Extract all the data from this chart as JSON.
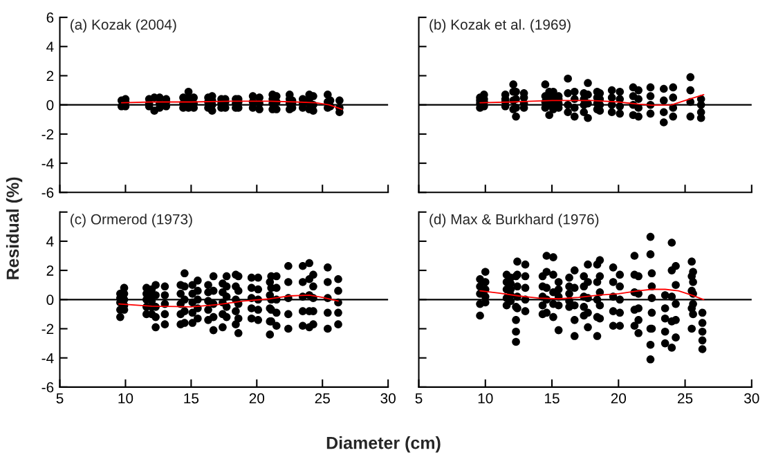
{
  "chart_data": [
    {
      "type": "scatter",
      "title": "(a) Kozak (2004)",
      "ylabel": "Residual (%)",
      "xlim": [
        5,
        30
      ],
      "xticks": [
        5,
        10,
        15,
        20,
        25,
        30
      ],
      "ylim": [
        -6,
        6
      ],
      "yticks": [
        -6,
        -4,
        -2,
        0,
        2,
        4,
        6
      ],
      "tick_labels": "y",
      "ref_lines": [
        {
          "axis": "y",
          "value": 0,
          "color": "#000000"
        }
      ],
      "series": [
        {
          "color": "#000000",
          "marker": "circle",
          "x": [
            9.7,
            9.7,
            10,
            10,
            10,
            11.8,
            11.8,
            11.8,
            12.2,
            12.2,
            12.6,
            12.6,
            12.6,
            13.1,
            13.1,
            13.1,
            14.4,
            14.4,
            14.4,
            14.8,
            14.8,
            14.8,
            14.8,
            15.2,
            15.2,
            15.2,
            16.3,
            16.3,
            16.3,
            16.6,
            16.6,
            16.6,
            16.6,
            17.3,
            17.3,
            17.3,
            17.6,
            17.6,
            17.6,
            18.4,
            18.4,
            18.4,
            18.6,
            18.6,
            18.6,
            19.7,
            19.7,
            19.7,
            20.2,
            20.2,
            20.2,
            21.2,
            21.2,
            21.2,
            21.2,
            21.5,
            21.5,
            21.5,
            22.5,
            22.5,
            22.5,
            22.5,
            22.7,
            22.7,
            22.7,
            23.5,
            23.5,
            23.5,
            24,
            24,
            24,
            24,
            24.3,
            24.3,
            24.3,
            25.4,
            25.4,
            25.4,
            25.6,
            25.6,
            26.3,
            26.3,
            26.3
          ],
          "values": [
            -0.1,
            0.3,
            -0.1,
            0.2,
            0.4,
            -0.1,
            0.1,
            0.4,
            -0.4,
            0.5,
            -0.2,
            0.1,
            0.5,
            -0.1,
            0.2,
            0.4,
            -0.2,
            0.1,
            0.5,
            -0.2,
            0.2,
            0.5,
            0.9,
            -0.2,
            0.1,
            0.5,
            -0.2,
            0.2,
            0.5,
            -0.4,
            0,
            0.3,
            0.6,
            -0.2,
            0.1,
            0.4,
            -0.2,
            0.2,
            0.4,
            -0.2,
            0.1,
            0.4,
            -0.2,
            0.2,
            0.4,
            -0.2,
            0.2,
            0.6,
            -0.3,
            0.1,
            0.5,
            -0.3,
            0.1,
            0.4,
            0.7,
            -0.3,
            0.2,
            0.6,
            -0.3,
            0.1,
            0.4,
            0.7,
            -0.2,
            0.1,
            0.3,
            -0.2,
            0.1,
            0.4,
            -0.3,
            0.1,
            0.4,
            0.7,
            -0.4,
            0,
            0.6,
            -0.2,
            0.2,
            0.7,
            -0.1,
            0.3,
            -0.5,
            -0.2,
            0.3
          ]
        },
        {
          "type": "line",
          "color": "#ff0000",
          "x": [
            9.7,
            12,
            15,
            18,
            21,
            23,
            24.5,
            25.5,
            26.5
          ],
          "values": [
            0.15,
            0.2,
            0.2,
            0.25,
            0.25,
            0.2,
            0.15,
            0.0,
            -0.3
          ]
        }
      ]
    },
    {
      "type": "scatter",
      "title": "(b) Kozak et al. (1969)",
      "xlim": [
        5,
        30
      ],
      "xticks": [
        5,
        10,
        15,
        20,
        25,
        30
      ],
      "ylim": [
        -6,
        6
      ],
      "yticks": [
        -6,
        -4,
        -2,
        0,
        2,
        4,
        6
      ],
      "tick_labels": false,
      "ref_lines": [
        {
          "axis": "y",
          "value": 0,
          "color": "#000000"
        }
      ],
      "series": [
        {
          "color": "#000000",
          "marker": "circle",
          "x": [
            9.6,
            9.6,
            9.6,
            9.6,
            9.9,
            9.9,
            9.9,
            9.9,
            11.5,
            11.5,
            11.5,
            11.5,
            12.1,
            12.1,
            12.1,
            12.1,
            12.3,
            12.3,
            12.3,
            12.3,
            12.9,
            12.9,
            12.9,
            12.9,
            14.5,
            14.5,
            14.5,
            14.5,
            14.8,
            14.8,
            14.8,
            14.8,
            15.1,
            15.1,
            15.1,
            15.1,
            15.5,
            15.5,
            15.5,
            15.5,
            16.2,
            16.2,
            16.2,
            16.2,
            16.7,
            16.7,
            16.7,
            16.7,
            17.4,
            17.4,
            17.4,
            17.4,
            17.7,
            17.7,
            17.7,
            17.7,
            18.4,
            18.4,
            18.4,
            18.4,
            18.6,
            18.6,
            18.6,
            18.6,
            19.5,
            19.5,
            19.5,
            19.5,
            20.1,
            20.1,
            20.1,
            20.1,
            21.1,
            21.1,
            21.1,
            21.1,
            21.5,
            21.5,
            21.5,
            21.5,
            22.4,
            22.4,
            22.4,
            22.4,
            23.4,
            23.4,
            23.4,
            23.4,
            24.1,
            24.1,
            24.1,
            24.1,
            25.4,
            25.4,
            25.4,
            25.4,
            26.2,
            26.2,
            26.2,
            26.2
          ],
          "values": [
            -0.2,
            0.1,
            0.3,
            0.5,
            -0.1,
            0.2,
            0.4,
            0.7,
            -0.1,
            0.2,
            0.4,
            0.7,
            -0.3,
            0.3,
            0.9,
            1.4,
            -0.8,
            -0.2,
            0.4,
            0.9,
            -0.2,
            0.1,
            0.5,
            0.8,
            -0.2,
            0.2,
            0.6,
            1.4,
            -0.7,
            0.0,
            0.5,
            0.9,
            -0.3,
            0.1,
            0.5,
            0.9,
            -0.2,
            0.1,
            0.4,
            0.6,
            -0.5,
            0.0,
            0.8,
            1.8,
            -0.8,
            -0.2,
            0.4,
            0.9,
            -0.5,
            0.0,
            0.4,
            0.8,
            -0.9,
            0.1,
            0.7,
            1.5,
            -0.3,
            0.1,
            0.5,
            0.9,
            -0.4,
            0.0,
            0.4,
            0.8,
            -0.5,
            0.0,
            0.5,
            1.0,
            -0.6,
            -0.1,
            0.4,
            0.9,
            -0.7,
            0.0,
            0.6,
            1.2,
            -0.8,
            -0.2,
            0.4,
            1.0,
            -0.6,
            0.0,
            0.6,
            1.2,
            -1.2,
            -0.5,
            0.3,
            1.1,
            -0.8,
            -0.2,
            0.5,
            1.2,
            -0.8,
            0.2,
            1.0,
            1.9,
            -0.9,
            -0.5,
            0.0,
            0.4
          ]
        },
        {
          "type": "line",
          "color": "#ff0000",
          "x": [
            9.6,
            12,
            15,
            18,
            20,
            21.5,
            22.5,
            24,
            25,
            26.4
          ],
          "values": [
            0.15,
            0.2,
            0.3,
            0.3,
            0.2,
            0.05,
            -0.02,
            0.0,
            0.3,
            0.7
          ]
        }
      ]
    },
    {
      "type": "scatter",
      "title": "(c) Ormerod (1973)",
      "xlabel": "Diameter (cm)",
      "xlim": [
        5,
        30
      ],
      "xticks": [
        5,
        10,
        15,
        20,
        25,
        30
      ],
      "ylim": [
        -6,
        6
      ],
      "yticks": [
        -6,
        -4,
        -2,
        0,
        2,
        4,
        {
          "value": 6,
          "label": null
        }
      ],
      "ref_lines": [
        {
          "axis": "y",
          "value": 0,
          "color": "#000000"
        }
      ],
      "series": [
        {
          "color": "#000000",
          "marker": "circle",
          "x": [
            9.6,
            9.6,
            9.6,
            9.6,
            9.6,
            9.9,
            9.9,
            9.9,
            9.9,
            9.9,
            11.6,
            11.6,
            11.6,
            11.6,
            11.6,
            12,
            12,
            12,
            12,
            12,
            12.3,
            12.3,
            12.3,
            12.3,
            12.3,
            13,
            13,
            13,
            13,
            13,
            14.2,
            14.2,
            14.2,
            14.2,
            14.2,
            14.5,
            14.5,
            14.5,
            14.5,
            14.5,
            15.1,
            15.1,
            15.1,
            15.1,
            15.1,
            15.5,
            15.5,
            15.5,
            15.5,
            15.5,
            16.3,
            16.3,
            16.3,
            16.3,
            16.3,
            16.7,
            16.7,
            16.7,
            16.7,
            16.7,
            17.4,
            17.4,
            17.4,
            17.4,
            17.4,
            17.7,
            17.7,
            17.7,
            17.7,
            17.7,
            18.4,
            18.4,
            18.4,
            18.4,
            18.4,
            18.6,
            18.6,
            18.6,
            18.6,
            18.6,
            19.6,
            19.6,
            19.6,
            19.6,
            19.6,
            20.1,
            20.1,
            20.1,
            20.1,
            20.1,
            21.1,
            21.1,
            21.1,
            21.1,
            21.1,
            21,
            21,
            21,
            21,
            21,
            21.5,
            21.5,
            21.5,
            21.5,
            21.5,
            22.4,
            22.4,
            22.4,
            22.4,
            22.4,
            23.5,
            23.5,
            23.5,
            23.5,
            23.5,
            24,
            24,
            24,
            24,
            24,
            24.3,
            24.3,
            24.3,
            24.3,
            24.3,
            25.4,
            25.4,
            25.4,
            25.4,
            25.4,
            26.2,
            26.2,
            26.2,
            26.2,
            26.2
          ],
          "values": [
            -1.2,
            -0.7,
            -0.2,
            0.1,
            0.4,
            -0.7,
            -0.4,
            0.0,
            0.4,
            0.8,
            -1.0,
            -0.5,
            0.0,
            0.4,
            0.8,
            -1.0,
            -0.5,
            -0.1,
            0.3,
            0.7,
            -1.9,
            -1.2,
            -0.5,
            0.3,
            1.0,
            -1.7,
            -1.0,
            -0.3,
            0.3,
            0.9,
            -1.7,
            -1.0,
            -0.3,
            0.4,
            1.0,
            -1.6,
            -0.8,
            0.0,
            0.9,
            1.8,
            -1.6,
            -0.9,
            -0.2,
            0.4,
            1.0,
            -1.3,
            -0.6,
            0.0,
            0.6,
            1.3,
            -1.4,
            -0.7,
            -0.1,
            0.5,
            1.0,
            -2.1,
            -1.2,
            -0.3,
            0.6,
            1.6,
            -1.9,
            -1.0,
            -0.2,
            0.5,
            1.1,
            -1.2,
            -0.5,
            0.2,
            0.9,
            1.6,
            -1.7,
            -0.8,
            0.0,
            0.9,
            1.7,
            -2.3,
            -1.3,
            -0.3,
            0.6,
            1.6,
            -1.3,
            -0.6,
            0.1,
            0.8,
            1.5,
            -1.4,
            -0.7,
            0.0,
            0.7,
            1.5,
            -1.5,
            -0.7,
            0.0,
            0.8,
            1.6,
            -2.4,
            -1.5,
            -0.6,
            0.3,
            1.2,
            -1.8,
            -0.9,
            0.0,
            0.8,
            1.6,
            -2.0,
            -1.0,
            0.1,
            1.2,
            2.3,
            -1.8,
            -0.8,
            0.2,
            1.2,
            2.3,
            -1.9,
            -0.8,
            0.3,
            1.4,
            2.5,
            -1.7,
            -0.8,
            0.1,
            0.9,
            1.7,
            -2.0,
            -0.9,
            0.1,
            1.2,
            2.2,
            -1.7,
            -0.9,
            -0.2,
            0.6,
            1.4
          ]
        },
        {
          "type": "line",
          "color": "#ff0000",
          "x": [
            9.5,
            12,
            15,
            17,
            19,
            21,
            22.5,
            24,
            25,
            26.2
          ],
          "values": [
            -0.3,
            -0.45,
            -0.5,
            -0.35,
            -0.1,
            0.05,
            0.25,
            0.3,
            0.15,
            -0.1
          ]
        }
      ]
    },
    {
      "type": "scatter",
      "title": "(d) Max & Burkhard (1976)",
      "xlim": [
        5,
        30
      ],
      "xticks": [
        5,
        10,
        15,
        20,
        25,
        30
      ],
      "ylim": [
        -6,
        6
      ],
      "yticks": [
        -6,
        -4,
        -2,
        0,
        2,
        4,
        6
      ],
      "tick_labels": "x",
      "ref_lines": [
        {
          "axis": "y",
          "value": 0,
          "color": "#000000"
        }
      ],
      "series": [
        {
          "color": "#000000",
          "marker": "circle",
          "x": [
            9.6,
            9.6,
            9.6,
            9.6,
            9.6,
            10,
            10,
            10,
            10,
            10,
            11.6,
            11.6,
            11.6,
            11.6,
            11.6,
            11.9,
            11.9,
            11.9,
            11.9,
            11.9,
            12.3,
            12.3,
            12.3,
            12.3,
            12.3,
            12.4,
            12.4,
            12.4,
            12.4,
            12.4,
            13,
            13,
            13,
            13,
            13,
            14.3,
            14.3,
            14.3,
            14.3,
            14.3,
            14.6,
            14.6,
            14.6,
            14.6,
            14.6,
            15.1,
            15.1,
            15.1,
            15.1,
            15.1,
            15.5,
            15.5,
            15.5,
            15.5,
            15.5,
            16.3,
            16.3,
            16.3,
            16.3,
            16.3,
            16.7,
            16.7,
            16.7,
            16.7,
            16.7,
            17.4,
            17.4,
            17.4,
            17.4,
            17.4,
            17.7,
            17.7,
            17.7,
            17.7,
            17.7,
            18.4,
            18.4,
            18.4,
            18.4,
            18.4,
            18.6,
            18.6,
            18.6,
            18.6,
            18.6,
            19.6,
            19.6,
            19.6,
            19.6,
            19.6,
            20.1,
            20.1,
            20.1,
            20.1,
            20.1,
            21.2,
            21.2,
            21.2,
            21.2,
            21.2,
            21.5,
            21.5,
            21.5,
            21.5,
            21.5,
            22.4,
            22.4,
            22.4,
            22.4,
            22.4,
            22.5,
            22.5,
            22.5,
            22.5,
            22.5,
            23.5,
            23.5,
            23.5,
            23.5,
            23.5,
            24,
            24,
            24,
            24,
            24,
            24.3,
            24.3,
            24.3,
            24.3,
            24.3,
            25.5,
            25.5,
            25.5,
            25.5,
            25.5,
            25.6,
            25.6,
            25.6,
            25.6,
            25.6,
            26.3,
            26.3,
            26.3,
            26.3,
            26.3
          ],
          "values": [
            -1.1,
            -0.3,
            0.4,
            0.9,
            1.4,
            -0.2,
            0.2,
            0.7,
            1.2,
            1.9,
            -0.4,
            0.1,
            0.7,
            1.2,
            1.7,
            -0.1,
            0.3,
            0.7,
            1.1,
            1.5,
            -2.9,
            -2.2,
            -1.4,
            -0.5,
            1.6,
            -0.6,
            0.2,
            0.9,
            1.7,
            2.6,
            -0.8,
            0.0,
            0.8,
            1.6,
            2.4,
            -1.0,
            -0.4,
            0.2,
            0.9,
            1.6,
            -0.9,
            0.0,
            0.8,
            1.9,
            3.0,
            -1.2,
            -0.3,
            0.5,
            1.7,
            2.9,
            -2.1,
            -0.4,
            0.2,
            0.7,
            1.2,
            -0.5,
            -0.1,
            0.4,
            0.9,
            1.5,
            -2.5,
            -1.4,
            -0.4,
            0.8,
            2.0,
            -1.1,
            -0.5,
            0.2,
            0.9,
            1.6,
            -1.9,
            -0.9,
            0.1,
            1.2,
            2.4,
            -2.5,
            -1.2,
            0.0,
            1.2,
            2.4,
            -1.3,
            -0.4,
            0.5,
            1.6,
            2.7,
            -1.8,
            -0.8,
            0.2,
            1.2,
            2.2,
            -1.8,
            -0.9,
            0.0,
            0.9,
            1.7,
            -1.8,
            -0.7,
            0.5,
            1.7,
            3.0,
            -2.3,
            -1.4,
            -0.6,
            0.4,
            1.6,
            -4.1,
            -3.1,
            -2.0,
            3.1,
            4.3,
            -2.0,
            -0.9,
            0.1,
            0.9,
            1.8,
            -3.0,
            -2.2,
            -1.3,
            -0.6,
            0.3,
            -3.3,
            -1.5,
            0.2,
            2.0,
            3.9,
            -2.6,
            -1.4,
            -0.3,
            1.0,
            2.3,
            -2.0,
            -0.6,
            0.6,
            1.6,
            2.6,
            -1.0,
            -0.3,
            0.4,
            1.2,
            1.9,
            -3.4,
            -2.8,
            -2.2,
            -1.6,
            -0.9
          ]
        },
        {
          "type": "line",
          "color": "#ff0000",
          "x": [
            9.6,
            11,
            12.5,
            14,
            15.5,
            17,
            18.5,
            20,
            21.5,
            22.5,
            23.5,
            24.5,
            25.5,
            26.4
          ],
          "values": [
            0.6,
            0.45,
            0.25,
            0.1,
            0.05,
            0.15,
            0.3,
            0.4,
            0.6,
            0.7,
            0.7,
            0.6,
            0.3,
            0.0
          ]
        }
      ]
    }
  ]
}
